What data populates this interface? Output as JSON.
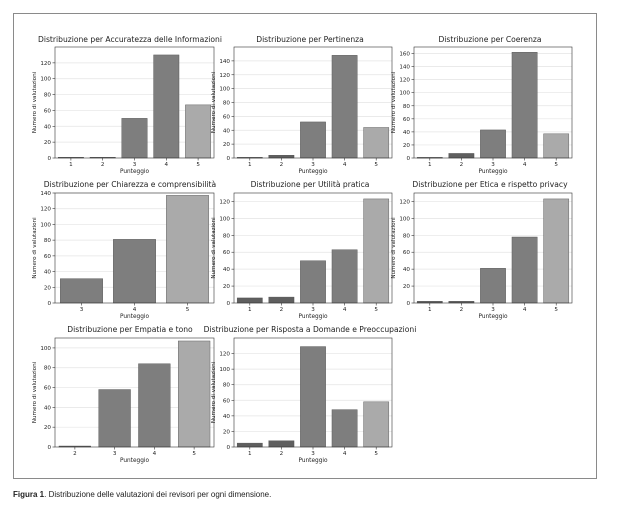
{
  "caption": {
    "label": "Figura 1",
    "text": ". Distribuzione delle valutazioni dei revisori per ogni dimensione."
  },
  "colors": {
    "bar_dark": "#5f5f5f",
    "bar_mid": "#7e7e7e",
    "bar_light": "#aaaaaa",
    "grid": "#e4e4e4",
    "axis": "#333333"
  },
  "chart_data": [
    {
      "type": "bar",
      "title": "Distribuzione per Accuratezza delle Informazioni",
      "xlabel": "Punteggio",
      "ylabel": "Numero di valutazioni",
      "categories": [
        "1",
        "2",
        "3",
        "4",
        "5"
      ],
      "values": [
        1,
        1,
        50,
        130,
        67
      ],
      "ylim": [
        0,
        140
      ],
      "yticks": [
        0,
        20,
        40,
        60,
        80,
        100,
        120
      ],
      "grid": true
    },
    {
      "type": "bar",
      "title": "Distribuzione per Pertinenza",
      "xlabel": "Punteggio",
      "ylabel": "Numero di valutazioni",
      "categories": [
        "1",
        "2",
        "3",
        "4",
        "5"
      ],
      "values": [
        1,
        4,
        52,
        148,
        44
      ],
      "ylim": [
        0,
        160
      ],
      "yticks": [
        0,
        20,
        40,
        60,
        80,
        100,
        120,
        140
      ],
      "grid": true
    },
    {
      "type": "bar",
      "title": "Distribuzione per Coerenza",
      "xlabel": "Punteggio",
      "ylabel": "Numero di valutazioni",
      "categories": [
        "1",
        "2",
        "3",
        "4",
        "5"
      ],
      "values": [
        1,
        7,
        43,
        162,
        37
      ],
      "ylim": [
        0,
        170
      ],
      "yticks": [
        0,
        20,
        40,
        60,
        80,
        100,
        120,
        140,
        160
      ],
      "grid": true
    },
    {
      "type": "bar",
      "title": "Distribuzione per Chiarezza e comprensibilità",
      "xlabel": "Punteggio",
      "ylabel": "Numero di valutazioni",
      "categories": [
        "3",
        "4",
        "5"
      ],
      "values": [
        31,
        81,
        137
      ],
      "ylim": [
        0,
        140
      ],
      "yticks": [
        0,
        20,
        40,
        60,
        80,
        100,
        120,
        140
      ],
      "grid": true
    },
    {
      "type": "bar",
      "title": "Distribuzione per Utilità pratica",
      "xlabel": "Punteggio",
      "ylabel": "Numero di valutazioni",
      "categories": [
        "1",
        "2",
        "3",
        "4",
        "5"
      ],
      "values": [
        6,
        7,
        50,
        63,
        123
      ],
      "ylim": [
        0,
        130
      ],
      "yticks": [
        0,
        20,
        40,
        60,
        80,
        100,
        120
      ],
      "grid": true
    },
    {
      "type": "bar",
      "title": "Distribuzione per Etica e  rispetto privacy",
      "xlabel": "Punteggio",
      "ylabel": "Numero di valutazioni",
      "categories": [
        "1",
        "2",
        "3",
        "4",
        "5"
      ],
      "values": [
        2,
        2,
        41,
        78,
        123
      ],
      "ylim": [
        0,
        130
      ],
      "yticks": [
        0,
        20,
        40,
        60,
        80,
        100,
        120
      ],
      "grid": true
    },
    {
      "type": "bar",
      "title": "Distribuzione per Empatia e tono",
      "xlabel": "Punteggio",
      "ylabel": "Numero di valutazioni",
      "categories": [
        "2",
        "3",
        "4",
        "5"
      ],
      "values": [
        1,
        58,
        84,
        107
      ],
      "ylim": [
        0,
        110
      ],
      "yticks": [
        0,
        20,
        40,
        60,
        80,
        100
      ],
      "grid": true
    },
    {
      "type": "bar",
      "title": "Distribuzione per Risposta a Domande e Preoccupazioni",
      "xlabel": "Punteggio",
      "ylabel": "Numero di valutazioni",
      "categories": [
        "1",
        "2",
        "3",
        "4",
        "5"
      ],
      "values": [
        5,
        8,
        129,
        48,
        58
      ],
      "ylim": [
        0,
        140
      ],
      "yticks": [
        0,
        20,
        40,
        60,
        80,
        100,
        120
      ],
      "grid": true
    }
  ]
}
